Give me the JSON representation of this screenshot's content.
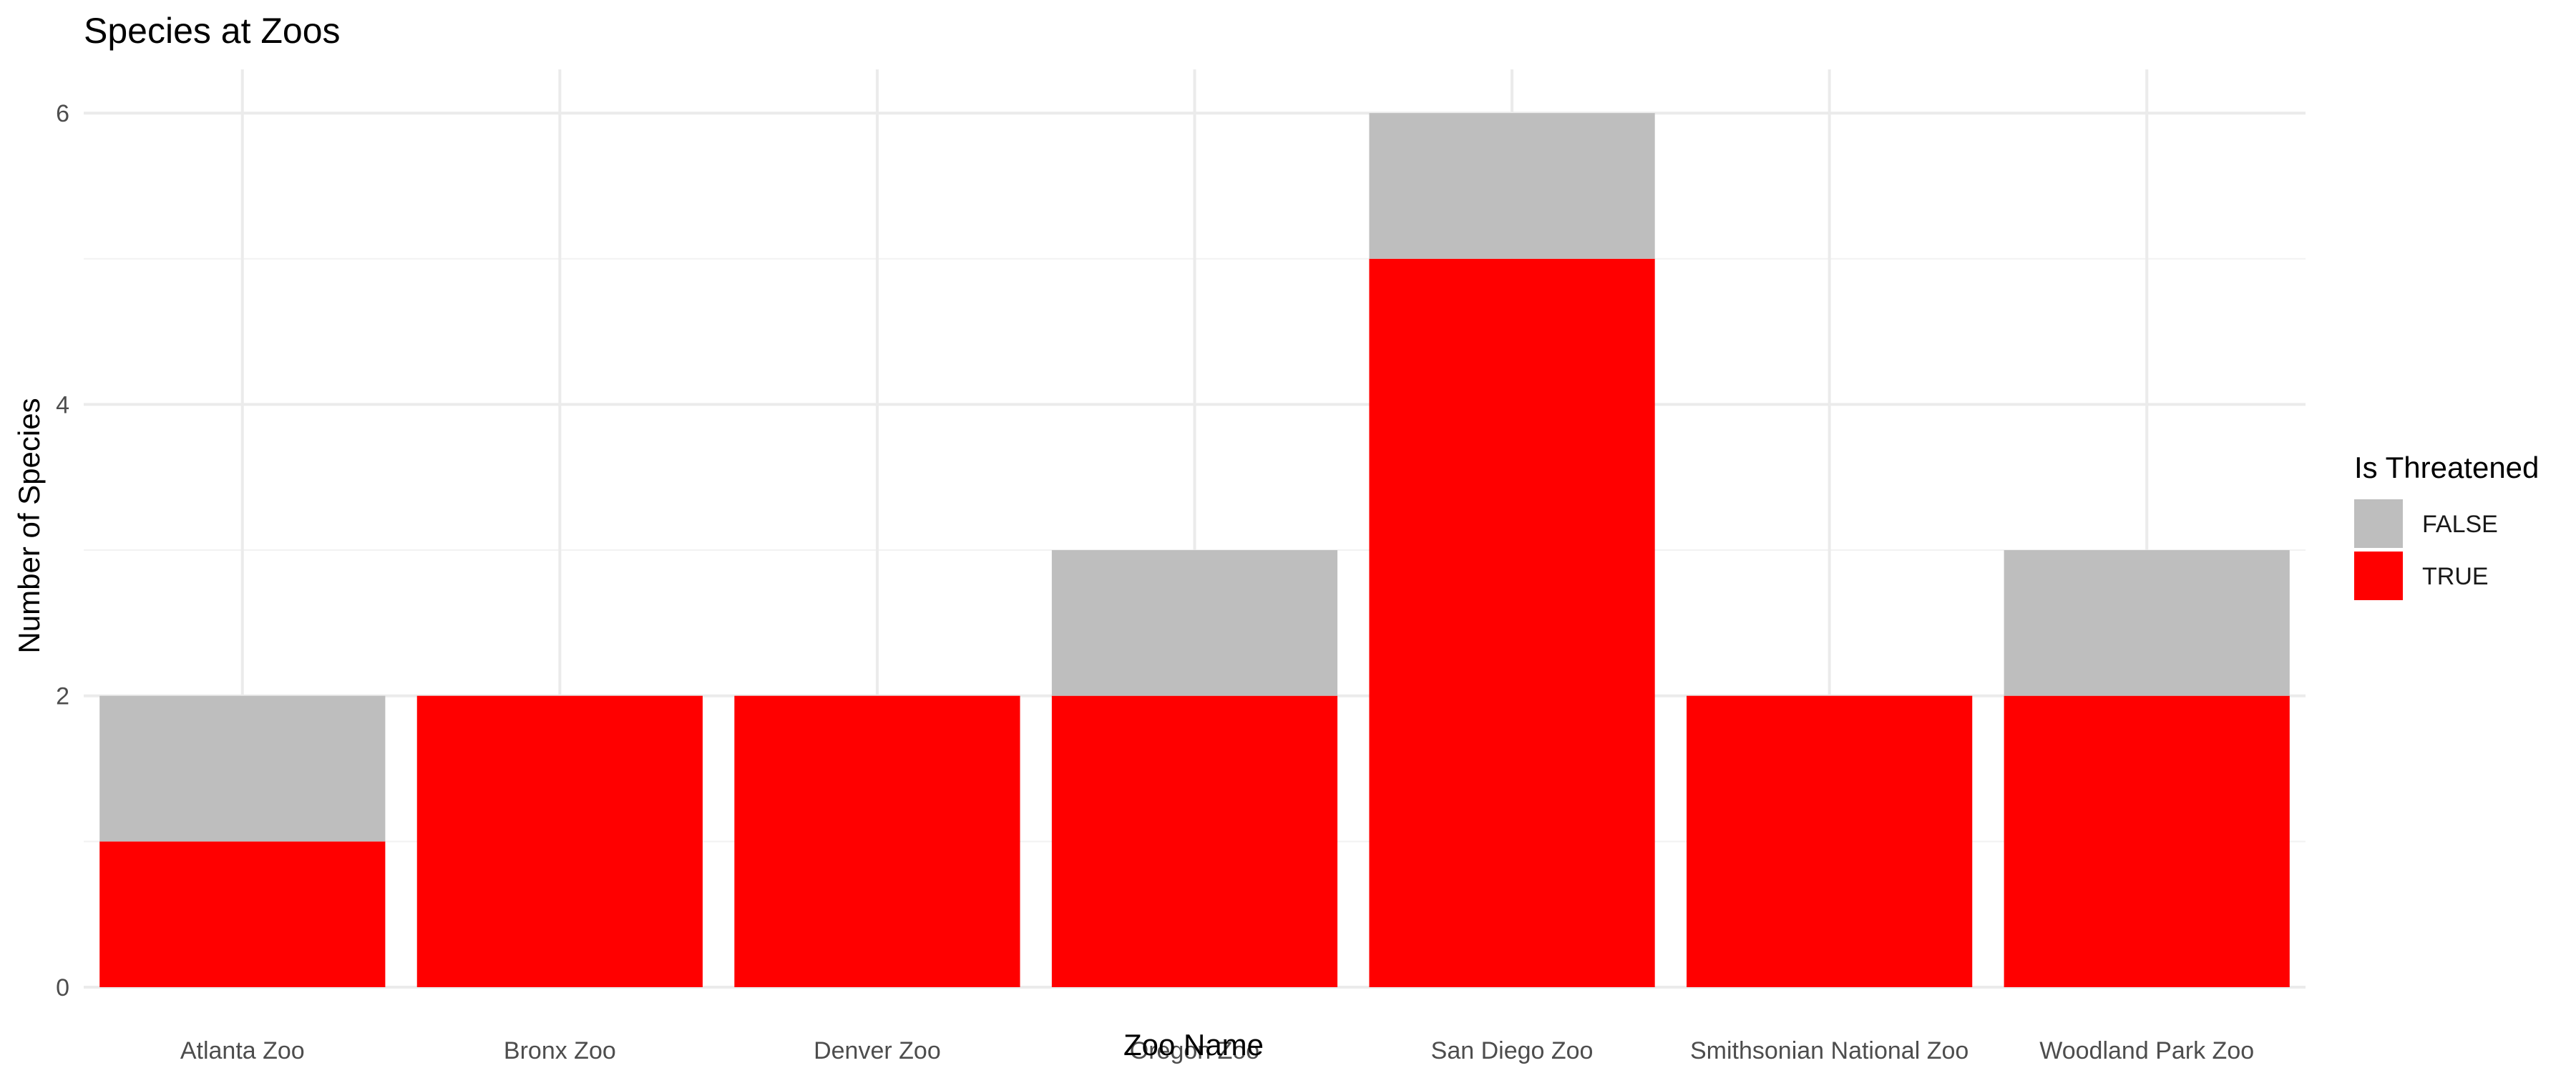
{
  "chart_data": {
    "type": "bar",
    "stacked": true,
    "title": "Species at Zoos",
    "xlabel": "Zoo Name",
    "ylabel": "Number of Species",
    "ylim": [
      0,
      6.3
    ],
    "yticks": [
      0,
      2,
      4,
      6
    ],
    "grid": true,
    "legend": {
      "title": "Is Threatened",
      "placement": "right"
    },
    "categories": [
      "Atlanta Zoo",
      "Bronx Zoo",
      "Denver Zoo",
      "Oregon Zoo",
      "San Diego Zoo",
      "Smithsonian National Zoo",
      "Woodland Park Zoo"
    ],
    "series": [
      {
        "name": "TRUE",
        "color": "#ff0000",
        "values": [
          1,
          2,
          2,
          2,
          5,
          2,
          2
        ]
      },
      {
        "name": "FALSE",
        "color": "#bebebe",
        "values": [
          1,
          0,
          0,
          1,
          1,
          0,
          1
        ]
      }
    ],
    "legend_order": [
      "FALSE",
      "TRUE"
    ]
  }
}
